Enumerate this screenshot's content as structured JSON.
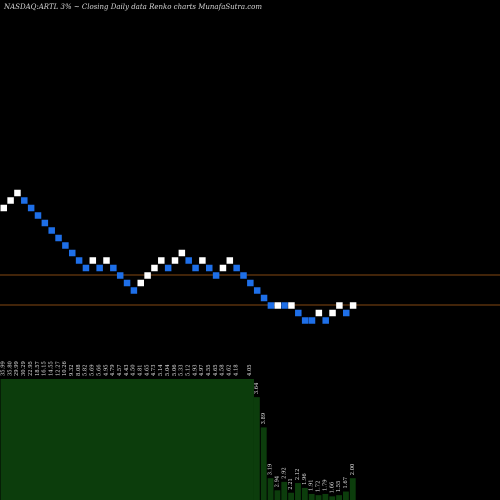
{
  "chart_data": {
    "type": "renko",
    "title": "NASDAQ:ARTL  3% ~   Closing Daily data  Renko  charts MunafaSutra.com",
    "colors": {
      "background": "#000000",
      "up_brick": "#ffffff",
      "down_brick": "#1e6fe8",
      "reference_line": "#b06018",
      "volume": "#0c3d0c"
    },
    "bricks": [
      {
        "x": 0,
        "y": 10,
        "dir": "up"
      },
      {
        "x": 1,
        "y": 11,
        "dir": "up"
      },
      {
        "x": 2,
        "y": 12,
        "dir": "up"
      },
      {
        "x": 3,
        "y": 11,
        "dir": "down"
      },
      {
        "x": 4,
        "y": 10,
        "dir": "down"
      },
      {
        "x": 5,
        "y": 9,
        "dir": "down"
      },
      {
        "x": 6,
        "y": 8,
        "dir": "down"
      },
      {
        "x": 7,
        "y": 7,
        "dir": "down"
      },
      {
        "x": 8,
        "y": 6,
        "dir": "down"
      },
      {
        "x": 9,
        "y": 5,
        "dir": "down"
      },
      {
        "x": 10,
        "y": 4,
        "dir": "down"
      },
      {
        "x": 11,
        "y": 3,
        "dir": "down"
      },
      {
        "x": 12,
        "y": 2,
        "dir": "down"
      },
      {
        "x": 13,
        "y": 3,
        "dir": "up"
      },
      {
        "x": 14,
        "y": 2,
        "dir": "down"
      },
      {
        "x": 15,
        "y": 3,
        "dir": "up"
      },
      {
        "x": 16,
        "y": 2,
        "dir": "down"
      },
      {
        "x": 17,
        "y": 1,
        "dir": "down"
      },
      {
        "x": 18,
        "y": 0,
        "dir": "down"
      },
      {
        "x": 19,
        "y": -1,
        "dir": "down"
      },
      {
        "x": 20,
        "y": 0,
        "dir": "up"
      },
      {
        "x": 21,
        "y": 1,
        "dir": "up"
      },
      {
        "x": 22,
        "y": 2,
        "dir": "up"
      },
      {
        "x": 23,
        "y": 3,
        "dir": "up"
      },
      {
        "x": 24,
        "y": 2,
        "dir": "down"
      },
      {
        "x": 25,
        "y": 3,
        "dir": "up"
      },
      {
        "x": 26,
        "y": 4,
        "dir": "up"
      },
      {
        "x": 27,
        "y": 3,
        "dir": "down"
      },
      {
        "x": 28,
        "y": 2,
        "dir": "down"
      },
      {
        "x": 29,
        "y": 3,
        "dir": "up"
      },
      {
        "x": 30,
        "y": 2,
        "dir": "down"
      },
      {
        "x": 31,
        "y": 1,
        "dir": "down"
      },
      {
        "x": 32,
        "y": 2,
        "dir": "up"
      },
      {
        "x": 33,
        "y": 3,
        "dir": "up"
      },
      {
        "x": 34,
        "y": 2,
        "dir": "down"
      },
      {
        "x": 35,
        "y": 1,
        "dir": "down"
      },
      {
        "x": 36,
        "y": 0,
        "dir": "down"
      },
      {
        "x": 37,
        "y": -1,
        "dir": "down"
      },
      {
        "x": 38,
        "y": -2,
        "dir": "down"
      },
      {
        "x": 39,
        "y": -3,
        "dir": "down"
      },
      {
        "x": 40,
        "y": -3,
        "dir": "up"
      },
      {
        "x": 41,
        "y": -3,
        "dir": "down"
      },
      {
        "x": 42,
        "y": -3,
        "dir": "up"
      },
      {
        "x": 43,
        "y": -4,
        "dir": "down"
      },
      {
        "x": 44,
        "y": -5,
        "dir": "down"
      },
      {
        "x": 45,
        "y": -5,
        "dir": "down"
      },
      {
        "x": 46,
        "y": -4,
        "dir": "up"
      },
      {
        "x": 47,
        "y": -5,
        "dir": "down"
      },
      {
        "x": 48,
        "y": -4,
        "dir": "up"
      },
      {
        "x": 49,
        "y": -3,
        "dir": "up"
      },
      {
        "x": 50,
        "y": -4,
        "dir": "down"
      },
      {
        "x": 51,
        "y": -3,
        "dir": "up"
      }
    ],
    "reference_lines": [
      1,
      -3
    ],
    "volume_bars": [
      {
        "x": 0,
        "h": 1.0
      },
      {
        "x": 37,
        "h": 0.85
      },
      {
        "x": 38,
        "h": 0.6
      },
      {
        "x": 39,
        "h": 0.18
      },
      {
        "x": 40,
        "h": 0.08
      },
      {
        "x": 41,
        "h": 0.15
      },
      {
        "x": 42,
        "h": 0.06
      },
      {
        "x": 43,
        "h": 0.14
      },
      {
        "x": 44,
        "h": 0.1
      },
      {
        "x": 45,
        "h": 0.05
      },
      {
        "x": 46,
        "h": 0.04
      },
      {
        "x": 47,
        "h": 0.05
      },
      {
        "x": 48,
        "h": 0.03
      },
      {
        "x": 49,
        "h": 0.04
      },
      {
        "x": 50,
        "h": 0.07
      },
      {
        "x": 51,
        "h": 0.18
      }
    ],
    "price_labels": [
      {
        "x": 0,
        "text": "35.99"
      },
      {
        "x": 1,
        "text": "35.80"
      },
      {
        "x": 2,
        "text": "29.99"
      },
      {
        "x": 3,
        "text": "30.29"
      },
      {
        "x": 4,
        "text": "22.95"
      },
      {
        "x": 5,
        "text": "18.57"
      },
      {
        "x": 6,
        "text": "16.15"
      },
      {
        "x": 7,
        "text": "14.55"
      },
      {
        "x": 8,
        "text": "12.27"
      },
      {
        "x": 9,
        "text": "10.26"
      },
      {
        "x": 10,
        "text": "9.32"
      },
      {
        "x": 11,
        "text": "8.08"
      },
      {
        "x": 12,
        "text": "5.82"
      },
      {
        "x": 13,
        "text": "5.69"
      },
      {
        "x": 14,
        "text": "5.66"
      },
      {
        "x": 15,
        "text": "4.95"
      },
      {
        "x": 16,
        "text": "4.79"
      },
      {
        "x": 17,
        "text": "4.57"
      },
      {
        "x": 18,
        "text": "4.43"
      },
      {
        "x": 19,
        "text": "4.50"
      },
      {
        "x": 20,
        "text": "4.81"
      },
      {
        "x": 21,
        "text": "4.65"
      },
      {
        "x": 22,
        "text": "4.73"
      },
      {
        "x": 23,
        "text": "5.14"
      },
      {
        "x": 24,
        "text": "5.04"
      },
      {
        "x": 25,
        "text": "5.06"
      },
      {
        "x": 26,
        "text": "5.33"
      },
      {
        "x": 27,
        "text": "5.12"
      },
      {
        "x": 28,
        "text": "4.93"
      },
      {
        "x": 29,
        "text": "4.97"
      },
      {
        "x": 30,
        "text": "4.55"
      },
      {
        "x": 31,
        "text": "4.65"
      },
      {
        "x": 32,
        "text": "4.58"
      },
      {
        "x": 33,
        "text": "4.62"
      },
      {
        "x": 34,
        "text": "4.18"
      },
      {
        "x": 36,
        "text": "4.05"
      },
      {
        "x": 37,
        "text": "3.64"
      },
      {
        "x": 38,
        "text": "3.89"
      },
      {
        "x": 39,
        "text": "3.19"
      },
      {
        "x": 40,
        "text": "2.94"
      },
      {
        "x": 41,
        "text": "2.92"
      },
      {
        "x": 42,
        "text": "2.21"
      },
      {
        "x": 43,
        "text": "2.12"
      },
      {
        "x": 44,
        "text": "1.96"
      },
      {
        "x": 45,
        "text": "1.91"
      },
      {
        "x": 46,
        "text": "1.72"
      },
      {
        "x": 47,
        "text": "1.79"
      },
      {
        "x": 48,
        "text": "1.66"
      },
      {
        "x": 49,
        "text": "1.55"
      },
      {
        "x": 50,
        "text": "1.67"
      },
      {
        "x": 51,
        "text": "2.00"
      }
    ]
  }
}
